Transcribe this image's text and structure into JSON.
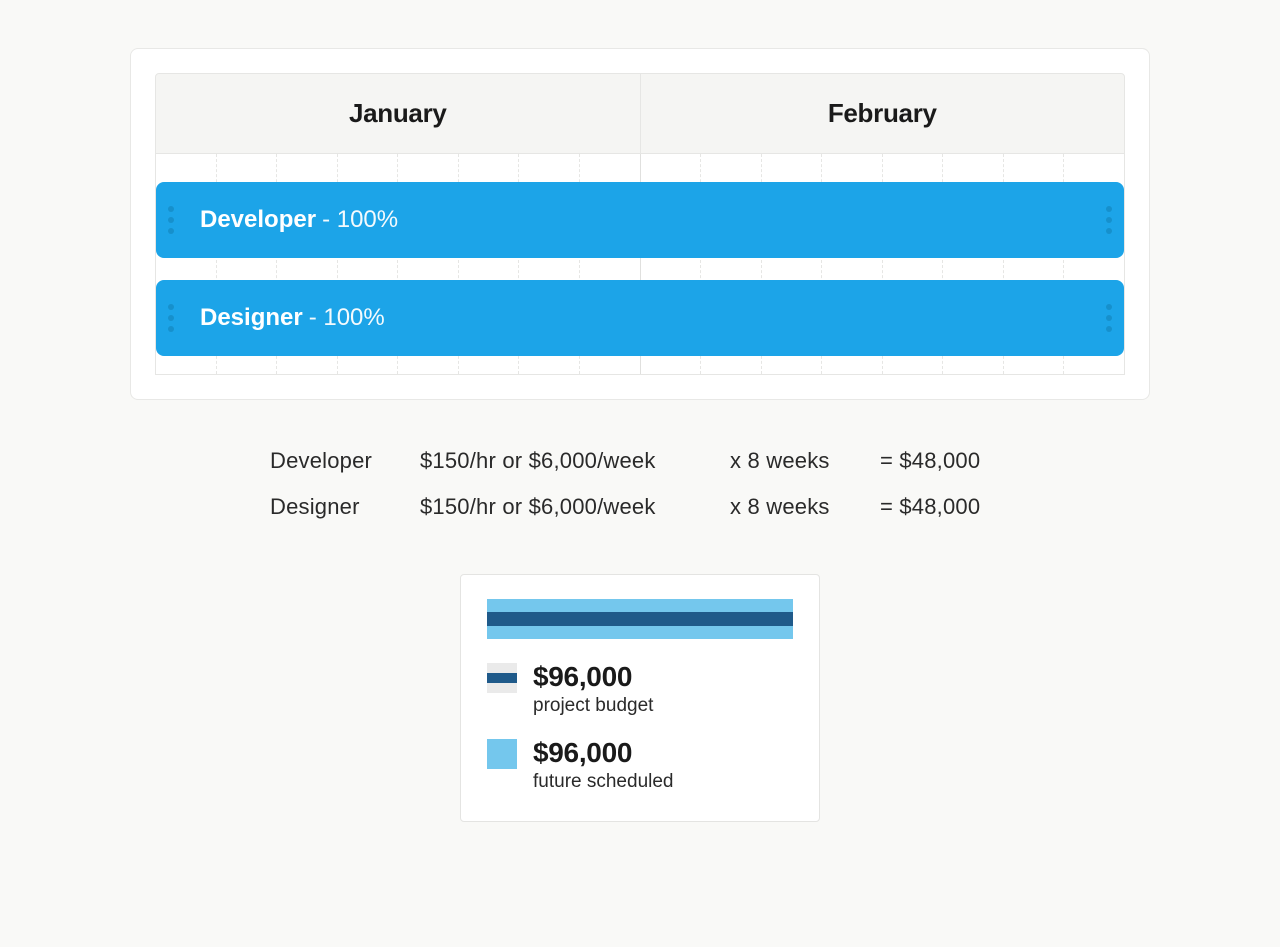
{
  "colors": {
    "page_bg": "#f9f9f7",
    "card_bg": "#ffffff",
    "card_border": "#e8e8e6",
    "header_bg": "#f5f5f3",
    "gridline": "#e6e6e4",
    "bar_bg": "#1ca4e8",
    "bar_text": "#ffffff",
    "bar_dot": "#1690cc",
    "text": "#1a1a1a",
    "budget_outer": "#74c7ed",
    "budget_inner": "#1f5a8a",
    "swatch_bg": "#eaeaea"
  },
  "timeline": {
    "months": [
      "January",
      "February"
    ],
    "weeks_total": 8,
    "bars": [
      {
        "role": "Developer",
        "allocation": "- 100%"
      },
      {
        "role": "Designer",
        "allocation": "- 100%"
      }
    ]
  },
  "breakdown": {
    "rows": [
      {
        "role": "Developer",
        "rate": "$150/hr or $6,000/week",
        "duration": "x 8 weeks",
        "total": "= $48,000"
      },
      {
        "role": "Designer",
        "rate": "$150/hr or $6,000/week",
        "duration": "x 8 weeks",
        "total": "= $48,000"
      }
    ]
  },
  "budget_card": {
    "bar": {
      "outer_color": "#74c7ed",
      "inner_color": "#1f5a8a",
      "outer_width_pct": 100,
      "inner_width_pct": 100
    },
    "legend": [
      {
        "swatch": "budget",
        "amount": "$96,000",
        "label": "project budget"
      },
      {
        "swatch": "future",
        "amount": "$96,000",
        "label": "future scheduled"
      }
    ]
  }
}
